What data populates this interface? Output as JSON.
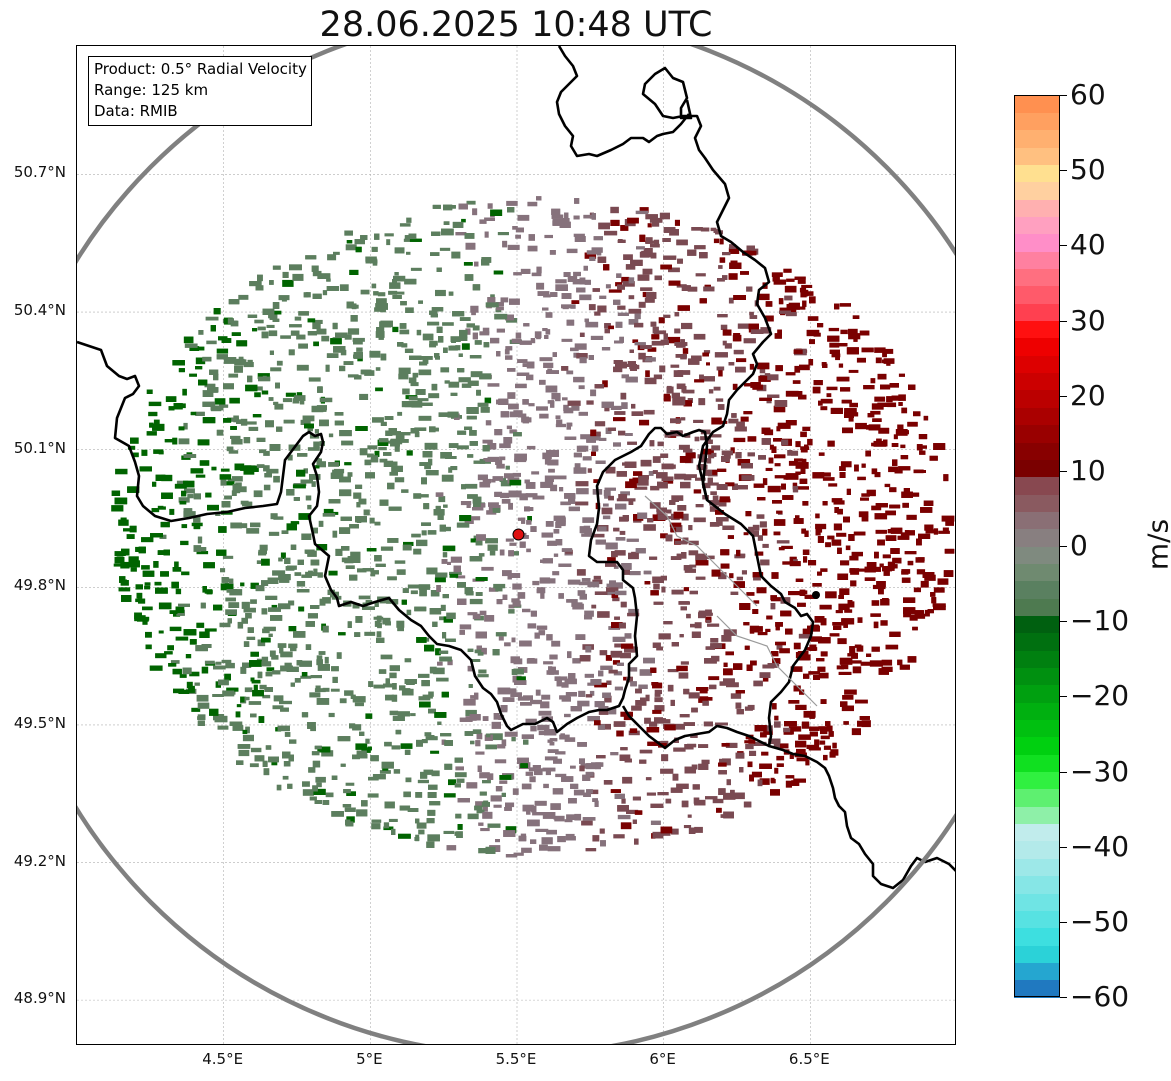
{
  "title": "28.06.2025 10:48 UTC",
  "info": {
    "product": "Product: 0.5° Radial Velocity",
    "range": "Range: 125 km",
    "data": "Data: RMIB"
  },
  "axes": {
    "lat_labels": [
      "50.7°N",
      "50.4°N",
      "50.1°N",
      "49.8°N",
      "49.5°N",
      "49.2°N",
      "48.9°N"
    ],
    "lon_labels": [
      "4.5°E",
      "5°E",
      "5.5°E",
      "6°E",
      "6.5°E"
    ],
    "lat_values": [
      50.7,
      50.4,
      50.1,
      49.8,
      49.5,
      49.2,
      48.9
    ],
    "lon_values": [
      4.5,
      5.0,
      5.5,
      6.0,
      6.5
    ],
    "lon_range": [
      4.0,
      7.0
    ],
    "lat_range": [
      48.8,
      50.98
    ]
  },
  "radar": {
    "lon": 5.505,
    "lat": 49.915,
    "range_km": 125,
    "marker_color": "#e01010"
  },
  "colorbar": {
    "label": "m/s",
    "min": -60,
    "max": 60,
    "ticks": [
      "60",
      "50",
      "40",
      "30",
      "20",
      "10",
      "0",
      "−10",
      "−20",
      "−30",
      "−40",
      "−50",
      "−60"
    ],
    "colors": [
      "#2079c0",
      "#25a6d0",
      "#2bd2d8",
      "#3ddfe0",
      "#57e2e2",
      "#6fe4e4",
      "#86e6e6",
      "#9de8e8",
      "#b3eaea",
      "#c1ecec",
      "#8ef0a8",
      "#5ef070",
      "#30f040",
      "#10e020",
      "#00d010",
      "#00c010",
      "#00b010",
      "#00a010",
      "#009010",
      "#008010",
      "#007010",
      "#006010",
      "#4e7a50",
      "#5a8060",
      "#6f8a70",
      "#7f8a7f",
      "#887f80",
      "#8a6f75",
      "#8a5a60",
      "#884850",
      "#7a0000",
      "#880000",
      "#990000",
      "#aa0000",
      "#bb0000",
      "#cc0000",
      "#dd0000",
      "#ee0000",
      "#ff1010",
      "#ff4050",
      "#ff5a6a",
      "#ff6f80",
      "#ff80a0",
      "#ff8ec8",
      "#ffa0c0",
      "#ffb0b0",
      "#ffd0a0",
      "#ffe090",
      "#ffc080",
      "#ffb070",
      "#ffa060",
      "#ff9050"
    ]
  },
  "colors": {
    "toward_strong": "#006400",
    "toward_weak": "#5c7e5e",
    "neutral": "#86727c",
    "away_weak": "#7a4a52",
    "away_strong": "#7a0000",
    "range_ring": "#808080",
    "border": "#000000"
  }
}
